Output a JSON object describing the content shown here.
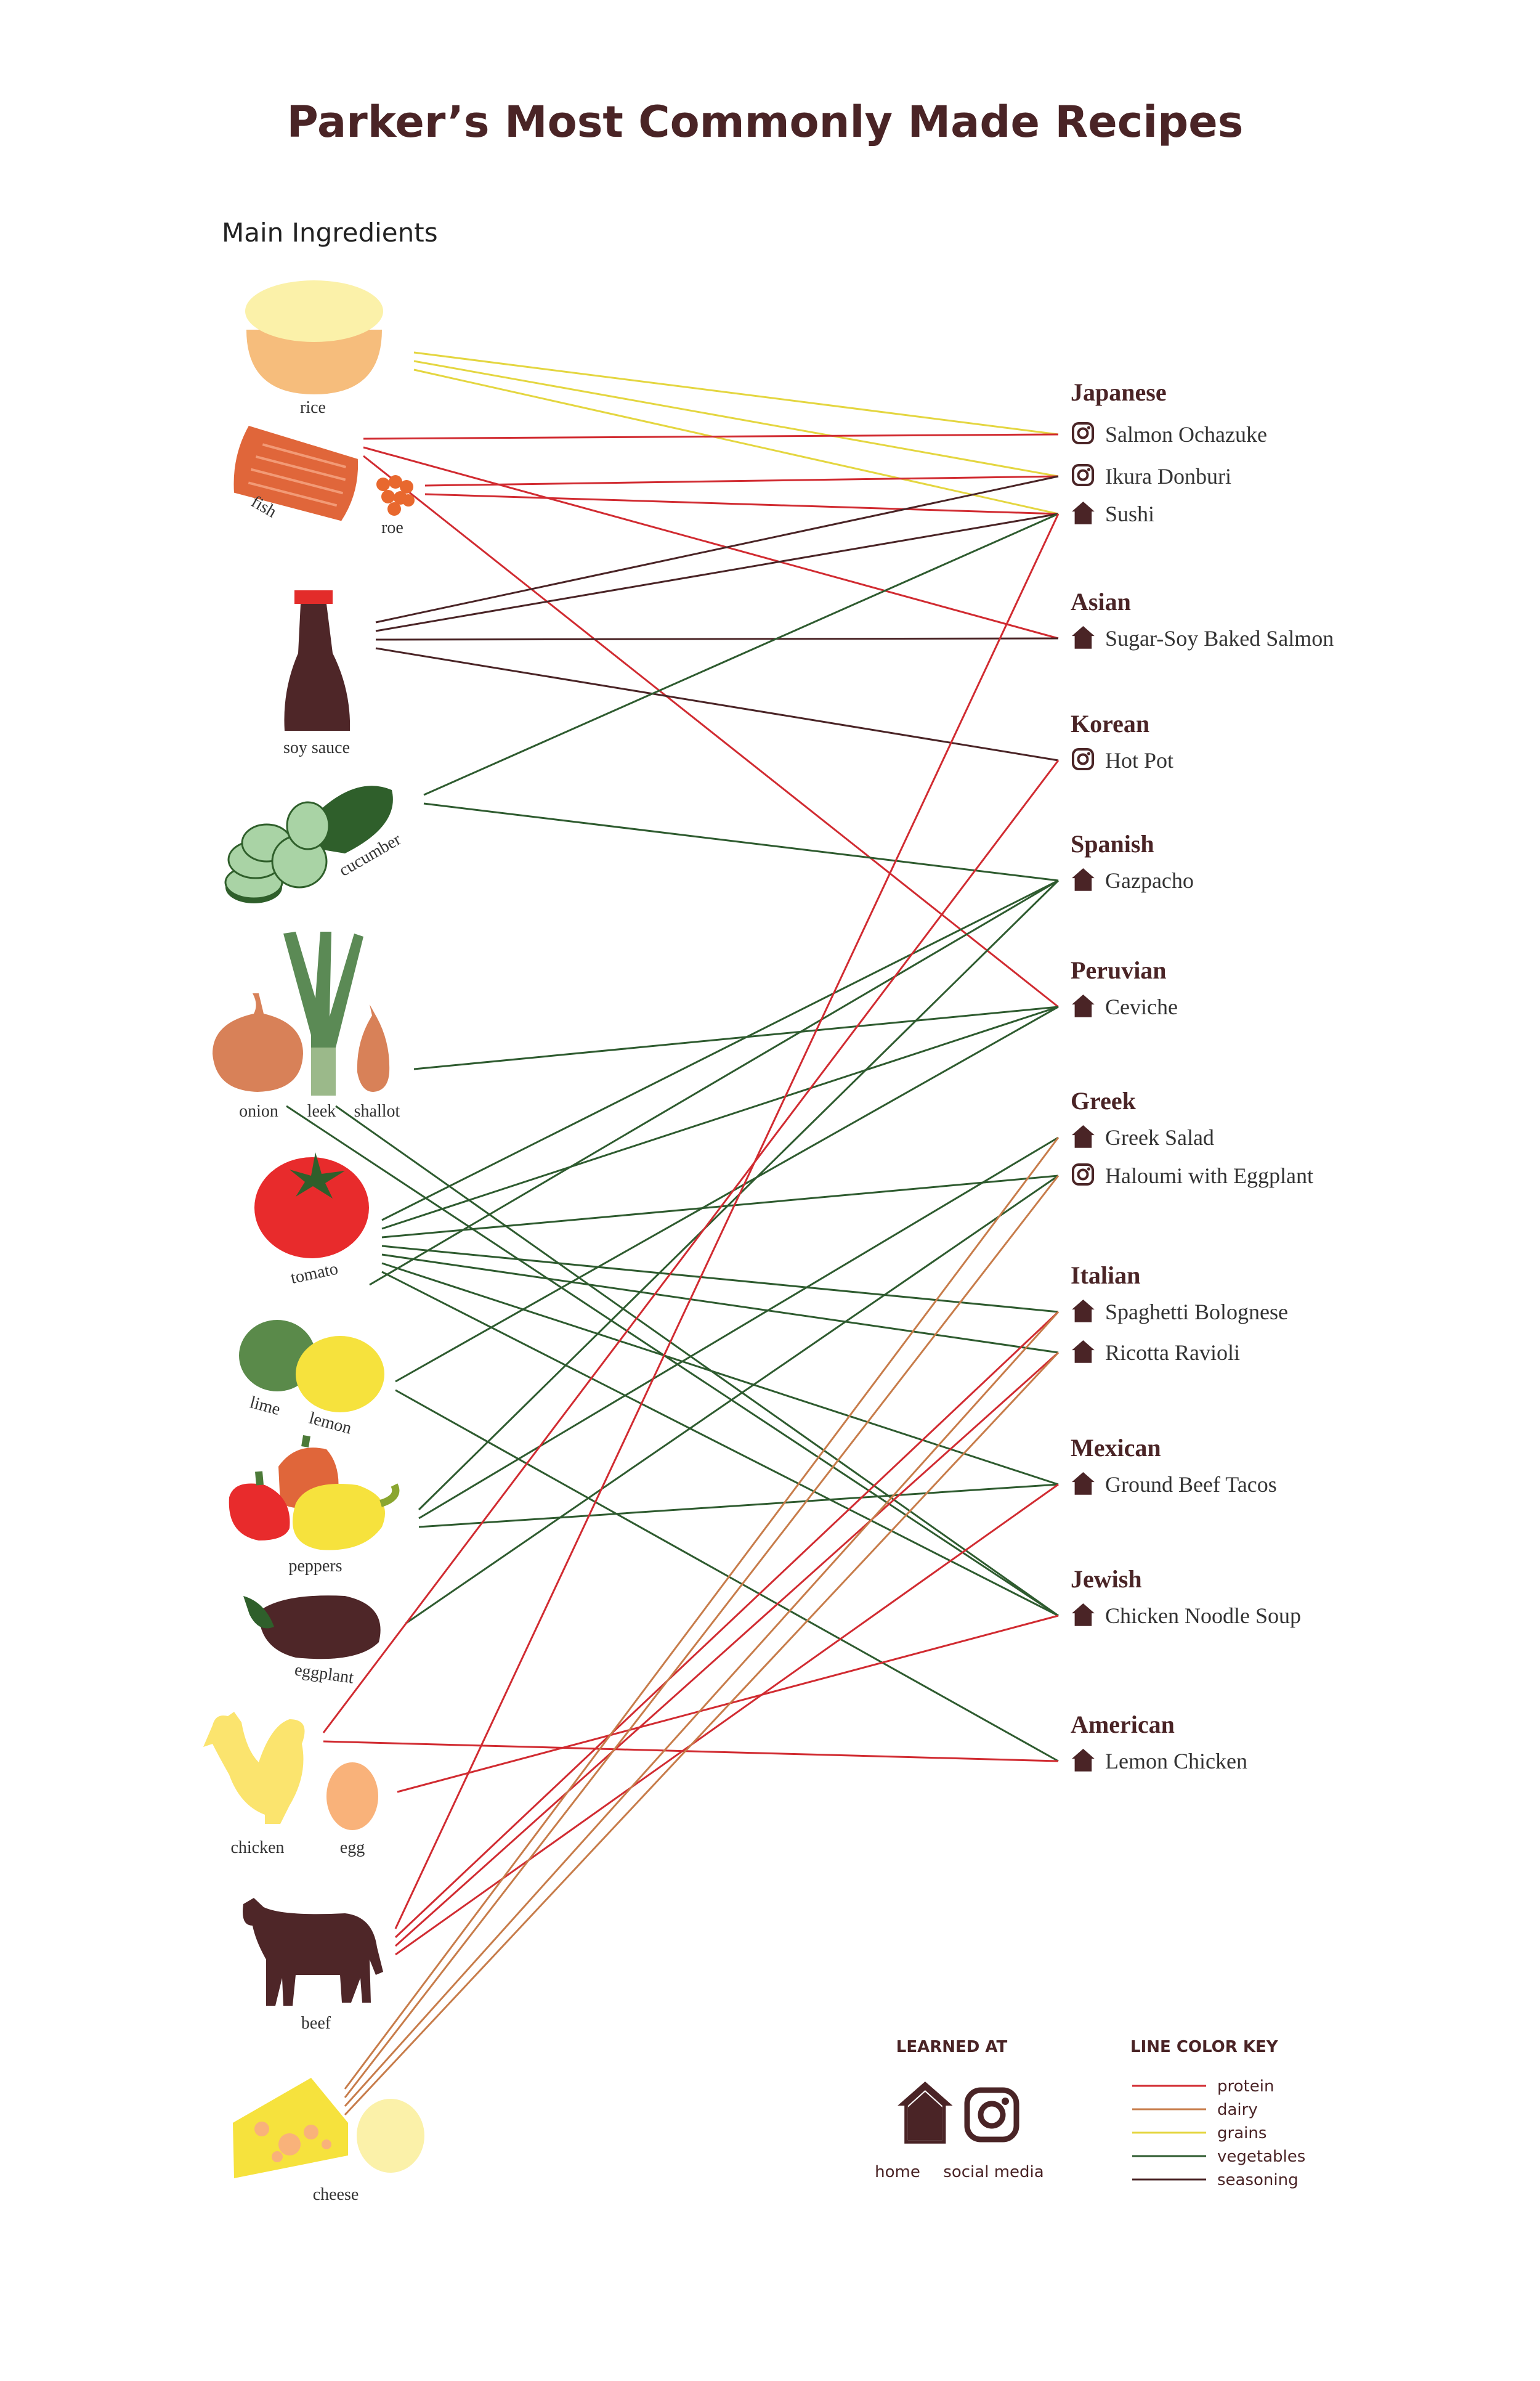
{
  "title": "Parker’s Most Commonly Made Recipes",
  "subtitle": "Main Ingredients",
  "colors": {
    "title": "#4a2426",
    "protein": "#d12b31",
    "dairy": "#c77c4a",
    "grains": "#e4d640",
    "vegetables": "#2e5b2f",
    "seasoning": "#4a2426",
    "icon": "#4a2426"
  },
  "ingredients": {
    "rice": "rice",
    "fish": "fish",
    "roe": "roe",
    "soy_sauce": "soy sauce",
    "cucumber": "cucumber",
    "onion": "onion",
    "leek": "leek",
    "shallot": "shallot",
    "tomato": "tomato",
    "lime": "lime",
    "lemon": "lemon",
    "peppers": "peppers",
    "eggplant": "eggplant",
    "chicken": "chicken",
    "egg": "egg",
    "beef": "beef",
    "cheese": "cheese"
  },
  "cuisines": [
    {
      "name": "Japanese",
      "recipes": [
        {
          "name": "Salmon Ochazuke",
          "learned": "social-media"
        },
        {
          "name": "Ikura Donburi",
          "learned": "social-media"
        },
        {
          "name": "Sushi",
          "learned": "home"
        }
      ]
    },
    {
      "name": "Asian",
      "recipes": [
        {
          "name": "Sugar-Soy Baked Salmon",
          "learned": "home"
        }
      ]
    },
    {
      "name": "Korean",
      "recipes": [
        {
          "name": "Hot Pot",
          "learned": "social-media"
        }
      ]
    },
    {
      "name": "Spanish",
      "recipes": [
        {
          "name": "Gazpacho",
          "learned": "home"
        }
      ]
    },
    {
      "name": "Peruvian",
      "recipes": [
        {
          "name": "Ceviche",
          "learned": "home"
        }
      ]
    },
    {
      "name": "Greek",
      "recipes": [
        {
          "name": "Greek Salad",
          "learned": "home"
        },
        {
          "name": "Haloumi with Eggplant",
          "learned": "social-media"
        }
      ]
    },
    {
      "name": "Italian",
      "recipes": [
        {
          "name": "Spaghetti Bolognese",
          "learned": "home"
        },
        {
          "name": "Ricotta Ravioli",
          "learned": "home"
        }
      ]
    },
    {
      "name": "Mexican",
      "recipes": [
        {
          "name": "Ground Beef Tacos",
          "learned": "home"
        }
      ]
    },
    {
      "name": "Jewish",
      "recipes": [
        {
          "name": "Chicken Noodle Soup",
          "learned": "home"
        }
      ]
    },
    {
      "name": "American",
      "recipes": [
        {
          "name": "Lemon Chicken",
          "learned": "home"
        }
      ]
    }
  ],
  "connections": [
    {
      "from": "rice",
      "to": "Salmon Ochazuke",
      "type": "grains"
    },
    {
      "from": "rice",
      "to": "Ikura Donburi",
      "type": "grains"
    },
    {
      "from": "rice",
      "to": "Sushi",
      "type": "grains"
    },
    {
      "from": "fish",
      "to": "Salmon Ochazuke",
      "type": "protein"
    },
    {
      "from": "fish",
      "to": "Sugar-Soy Baked Salmon",
      "type": "protein"
    },
    {
      "from": "fish",
      "to": "Ceviche",
      "type": "protein"
    },
    {
      "from": "roe",
      "to": "Ikura Donburi",
      "type": "protein"
    },
    {
      "from": "roe",
      "to": "Sushi",
      "type": "protein"
    },
    {
      "from": "soy sauce",
      "to": "Ikura Donburi",
      "type": "seasoning"
    },
    {
      "from": "soy sauce",
      "to": "Sushi",
      "type": "seasoning"
    },
    {
      "from": "soy sauce",
      "to": "Sugar-Soy Baked Salmon",
      "type": "seasoning"
    },
    {
      "from": "soy sauce",
      "to": "Hot Pot",
      "type": "seasoning"
    },
    {
      "from": "cucumber",
      "to": "Sushi",
      "type": "vegetables"
    },
    {
      "from": "cucumber",
      "to": "Gazpacho",
      "type": "vegetables"
    },
    {
      "from": "shallot",
      "to": "Ceviche",
      "type": "vegetables"
    },
    {
      "from": "onion",
      "to": "Chicken Noodle Soup",
      "type": "vegetables"
    },
    {
      "from": "leek",
      "to": "Chicken Noodle Soup",
      "type": "vegetables"
    },
    {
      "from": "tomato",
      "to": "Gazpacho",
      "type": "vegetables"
    },
    {
      "from": "tomato",
      "to": "Ceviche",
      "type": "vegetables"
    },
    {
      "from": "tomato",
      "to": "Haloumi with Eggplant",
      "type": "vegetables"
    },
    {
      "from": "tomato",
      "to": "Spaghetti Bolognese",
      "type": "vegetables"
    },
    {
      "from": "tomato",
      "to": "Ricotta Ravioli",
      "type": "vegetables"
    },
    {
      "from": "tomato",
      "to": "Ground Beef Tacos",
      "type": "vegetables"
    },
    {
      "from": "tomato",
      "to": "Chicken Noodle Soup",
      "type": "vegetables"
    },
    {
      "from": "lime",
      "to": "Gazpacho",
      "type": "vegetables"
    },
    {
      "from": "lemon",
      "to": "Ceviche",
      "type": "vegetables"
    },
    {
      "from": "lemon",
      "to": "Lemon Chicken",
      "type": "vegetables"
    },
    {
      "from": "peppers",
      "to": "Gazpacho",
      "type": "vegetables"
    },
    {
      "from": "peppers",
      "to": "Greek Salad",
      "type": "vegetables"
    },
    {
      "from": "peppers",
      "to": "Ground Beef Tacos",
      "type": "vegetables"
    },
    {
      "from": "eggplant",
      "to": "Haloumi with Eggplant",
      "type": "vegetables"
    },
    {
      "from": "chicken",
      "to": "Hot Pot",
      "type": "protein"
    },
    {
      "from": "chicken",
      "to": "Lemon Chicken",
      "type": "protein"
    },
    {
      "from": "egg",
      "to": "Chicken Noodle Soup",
      "type": "protein"
    },
    {
      "from": "beef",
      "to": "Sushi",
      "type": "protein"
    },
    {
      "from": "beef",
      "to": "Spaghetti Bolognese",
      "type": "protein"
    },
    {
      "from": "beef",
      "to": "Ricotta Ravioli",
      "type": "protein"
    },
    {
      "from": "beef",
      "to": "Ground Beef Tacos",
      "type": "protein"
    },
    {
      "from": "cheese",
      "to": "Greek Salad",
      "type": "dairy"
    },
    {
      "from": "cheese",
      "to": "Haloumi with Eggplant",
      "type": "dairy"
    },
    {
      "from": "cheese",
      "to": "Spaghetti Bolognese",
      "type": "dairy"
    },
    {
      "from": "cheese",
      "to": "Ricotta Ravioli",
      "type": "dairy"
    }
  ],
  "legend": {
    "learned_title": "LEARNED AT",
    "home_label": "home",
    "social_label": "social media",
    "key_title": "LINE COLOR KEY",
    "key": [
      {
        "label": "protein",
        "type": "protein"
      },
      {
        "label": "dairy",
        "type": "dairy"
      },
      {
        "label": "grains",
        "type": "grains"
      },
      {
        "label": "vegetables",
        "type": "vegetables"
      },
      {
        "label": "seasoning",
        "type": "seasoning"
      }
    ]
  }
}
